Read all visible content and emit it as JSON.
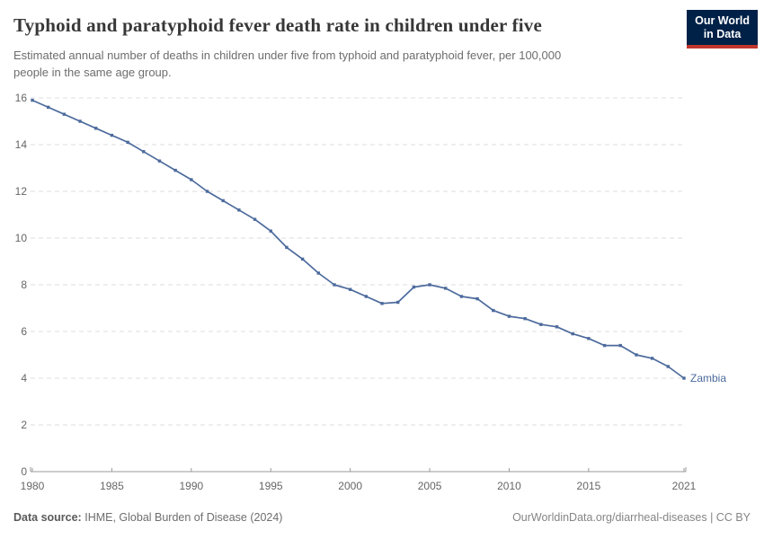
{
  "header": {
    "title": "Typhoid and paratyphoid fever death rate in children under five",
    "subtitle": "Estimated annual number of deaths in children under five from typhoid and paratyphoid fever, per 100,000 people in the same age group.",
    "subtitle_lines": [
      "Estimated annual number of deaths in children under five from typhoid and paratyphoid fever, per 100,000",
      "people in the same age group."
    ],
    "logo": {
      "line1": "Our World",
      "line2": "in Data"
    }
  },
  "chart_data": {
    "type": "line",
    "title": "Typhoid and paratyphoid fever death rate in children under five",
    "x": [
      1980,
      1981,
      1982,
      1983,
      1984,
      1985,
      1986,
      1987,
      1988,
      1989,
      1990,
      1991,
      1992,
      1993,
      1994,
      1995,
      1996,
      1997,
      1998,
      1999,
      2000,
      2001,
      2002,
      2003,
      2004,
      2005,
      2006,
      2007,
      2008,
      2009,
      2010,
      2011,
      2012,
      2013,
      2014,
      2015,
      2016,
      2017,
      2018,
      2019,
      2020,
      2021
    ],
    "series": [
      {
        "name": "Zambia",
        "color": "#4C6A9C",
        "values": [
          15.9,
          15.6,
          15.3,
          15.0,
          14.7,
          14.4,
          14.1,
          13.7,
          13.3,
          12.9,
          12.5,
          12.0,
          11.6,
          11.2,
          10.8,
          10.3,
          9.6,
          9.1,
          8.5,
          8.0,
          7.8,
          7.5,
          7.2,
          7.25,
          7.9,
          8.0,
          7.85,
          7.5,
          7.4,
          6.9,
          6.65,
          6.55,
          6.3,
          6.2,
          5.9,
          5.7,
          5.4,
          5.4,
          5.0,
          4.85,
          4.5,
          4.0
        ]
      }
    ],
    "xlabel": "",
    "ylabel": "",
    "xlim": [
      1980,
      2021
    ],
    "ylim": [
      0,
      16
    ],
    "yticks": [
      0,
      2,
      4,
      6,
      8,
      10,
      12,
      14,
      16
    ],
    "xticks": [
      1980,
      1985,
      1990,
      1995,
      2000,
      2005,
      2010,
      2015,
      2021
    ],
    "grid": "horizontal-dashed",
    "legend": "end-of-line-label",
    "marker": "square"
  },
  "footer": {
    "source_label": "Data source:",
    "source_text": "IHME, Global Burden of Disease (2024)",
    "credit": "OurWorldinData.org/diarrheal-diseases | CC BY"
  },
  "colors": {
    "line": "#4C6A9C",
    "grid": "#dcdcdc",
    "axis": "#9a9a9a",
    "tick_label": "#666666",
    "title": "#373737",
    "subtitle": "#6d6d6d",
    "logo_bg": "#002147",
    "logo_accent": "#c0362c"
  }
}
